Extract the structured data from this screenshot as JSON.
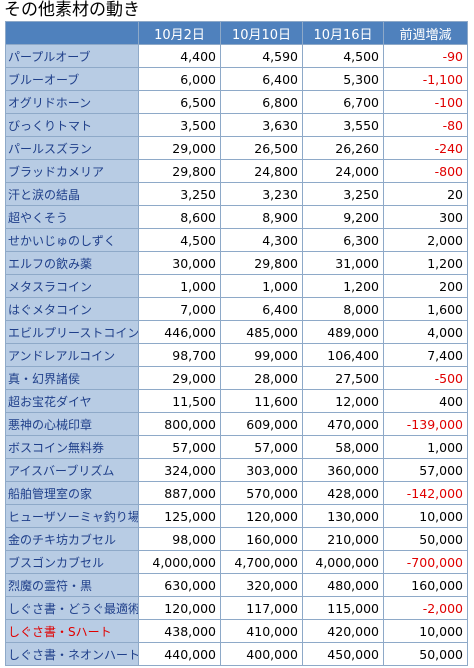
{
  "header": {
    "title": "その他素材の動き"
  },
  "table": {
    "columns": [
      "",
      "10月2日",
      "10月10日",
      "10月16日",
      "前週増減"
    ],
    "rows": [
      [
        "パープルオーブ",
        "4,400",
        "4,590",
        "4,500",
        "-90"
      ],
      [
        "ブルーオーブ",
        "6,000",
        "6,400",
        "5,300",
        "-1,100"
      ],
      [
        "オグリドホーン",
        "6,500",
        "6,800",
        "6,700",
        "-100"
      ],
      [
        "びっくりトマト",
        "3,500",
        "3,630",
        "3,550",
        "-80"
      ],
      [
        "パールスズラン",
        "29,000",
        "26,500",
        "26,260",
        "-240"
      ],
      [
        "ブラッドカメリア",
        "29,800",
        "24,800",
        "24,000",
        "-800"
      ],
      [
        "汗と涙の結晶",
        "3,250",
        "3,230",
        "3,250",
        "20"
      ],
      [
        "超やくそう",
        "8,600",
        "8,900",
        "9,200",
        "300"
      ],
      [
        "せかいじゅのしずく",
        "4,500",
        "4,300",
        "6,300",
        "2,000"
      ],
      [
        "エルフの飲み薬",
        "30,000",
        "29,800",
        "31,000",
        "1,200"
      ],
      [
        "メタスラコイン",
        "1,000",
        "1,000",
        "1,200",
        "200"
      ],
      [
        "はぐメタコイン",
        "7,000",
        "6,400",
        "8,000",
        "1,600"
      ],
      [
        "エビルプリーストコイン",
        "446,000",
        "485,000",
        "489,000",
        "4,000"
      ],
      [
        "アンドレアルコイン",
        "98,700",
        "99,000",
        "106,400",
        "7,400"
      ],
      [
        "真・幻界諸侯",
        "29,000",
        "28,000",
        "27,500",
        "-500"
      ],
      [
        "超お宝花ダイヤ",
        "11,500",
        "11,600",
        "12,000",
        "400"
      ],
      [
        "悪神の心械印章",
        "800,000",
        "609,000",
        "470,000",
        "-139,000"
      ],
      [
        "ボスコイン無料券",
        "57,000",
        "57,000",
        "58,000",
        "1,000"
      ],
      [
        "アイスバーブリズム",
        "324,000",
        "303,000",
        "360,000",
        "57,000"
      ],
      [
        "船舶管理室の家",
        "887,000",
        "570,000",
        "428,000",
        "-142,000"
      ],
      [
        "ヒューザソーミャ釣り場",
        "125,000",
        "120,000",
        "130,000",
        "10,000"
      ],
      [
        "金のチキ坊カブセル",
        "98,000",
        "160,000",
        "210,000",
        "50,000"
      ],
      [
        "ブスゴンカブセル",
        "4,000,000",
        "4,700,000",
        "4,000,000",
        "-700,000"
      ],
      [
        "烈魔の霊符・黒",
        "630,000",
        "320,000",
        "480,000",
        "160,000"
      ],
      [
        "しぐさ書・どうぐ最適術",
        "120,000",
        "117,000",
        "115,000",
        "-2,000"
      ],
      [
        "しぐさ書・Sハート",
        "438,000",
        "410,000",
        "420,000",
        "10,000"
      ],
      [
        "しぐさ書・ネオンハート",
        "440,000",
        "400,000",
        "450,000",
        "50,000"
      ]
    ]
  }
}
